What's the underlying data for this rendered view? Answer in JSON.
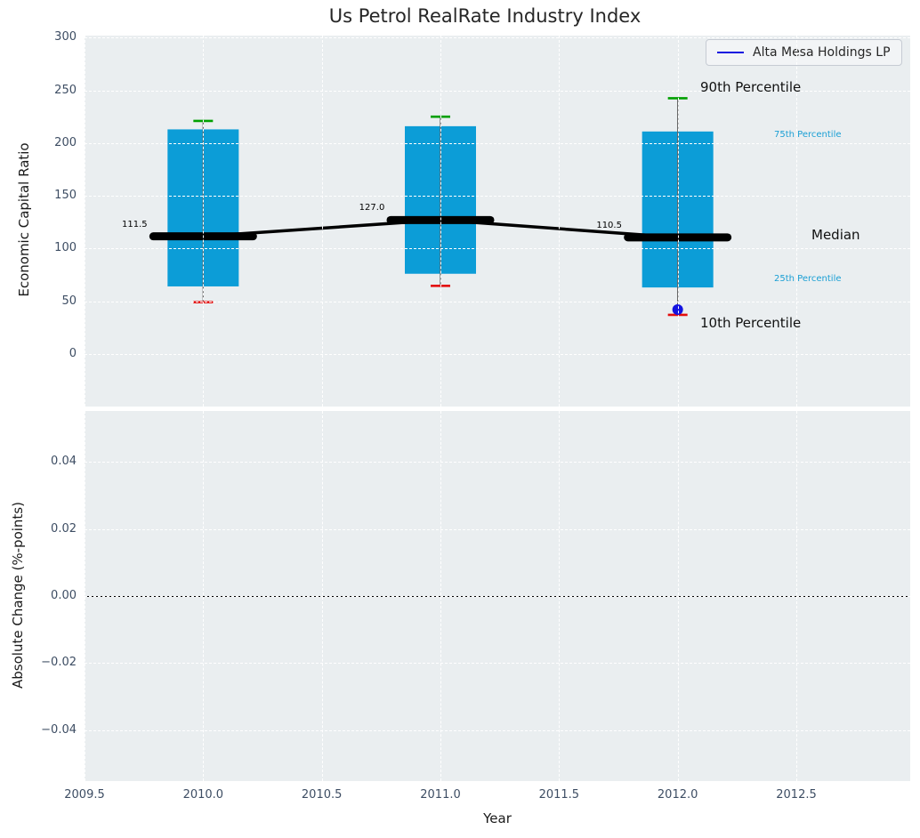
{
  "title": "Us Petrol RealRate Industry Index",
  "chart_data": {
    "type": "boxplot",
    "title": "Us Petrol RealRate Industry Index",
    "xlabel": "Year",
    "xlim": [
      2009.5,
      2012.98
    ],
    "xticks": [
      2009.5,
      2010.0,
      2010.5,
      2011.0,
      2011.5,
      2012.0,
      2012.5
    ],
    "xtick_labels": [
      "2009.5",
      "2010.0",
      "2010.5",
      "2011.0",
      "2011.5",
      "2012.0",
      "2012.5"
    ],
    "top_panel": {
      "ylabel": "Economic Capital Ratio",
      "ylim": [
        -50,
        302
      ],
      "yticks": [
        0,
        50,
        100,
        150,
        200,
        250,
        300
      ],
      "ytick_labels": [
        "0",
        "50",
        "100",
        "150",
        "200",
        "250",
        "300"
      ],
      "grid": true,
      "x": [
        2010,
        2011,
        2012
      ],
      "p10": [
        49,
        64.5,
        37
      ],
      "p25": [
        64,
        76,
        63
      ],
      "median": [
        111.5,
        127.0,
        110.5
      ],
      "p75": [
        213,
        216,
        211
      ],
      "p90": [
        221,
        225,
        242.5
      ],
      "median_labels": [
        "111.5",
        "127.0",
        "110.5"
      ],
      "company_point": {
        "x": 2012,
        "y": 42
      },
      "annotations": {
        "p90": "90th Percentile",
        "p75": "75th Percentile",
        "median": "Median",
        "p25": "25th Percentile",
        "p10": "10th Percentile"
      }
    },
    "bottom_panel": {
      "ylabel": "Absolute Change (%-points)",
      "ylim": [
        -0.0552,
        0.0552
      ],
      "yticks": [
        0.04,
        0.02,
        0,
        -0.02,
        -0.04
      ],
      "ytick_labels": [
        "0.04",
        "0.02",
        "0.00",
        "−0.02",
        "−0.04"
      ],
      "zero_line": 0
    },
    "legend": {
      "label": "Alta Mesa Holdings LP",
      "position": "upper right"
    },
    "colors": {
      "box": "#0c9dd7",
      "whisker": "#666666",
      "cap_high": "#00a000",
      "cap_low": "#e30e0e",
      "median": "#000000",
      "company": "#1212e0",
      "axes_bg": "#eaeef0",
      "grid": "#ffffff",
      "tick": "#3d4d63",
      "annotation_small": "#1a9fd4"
    }
  }
}
